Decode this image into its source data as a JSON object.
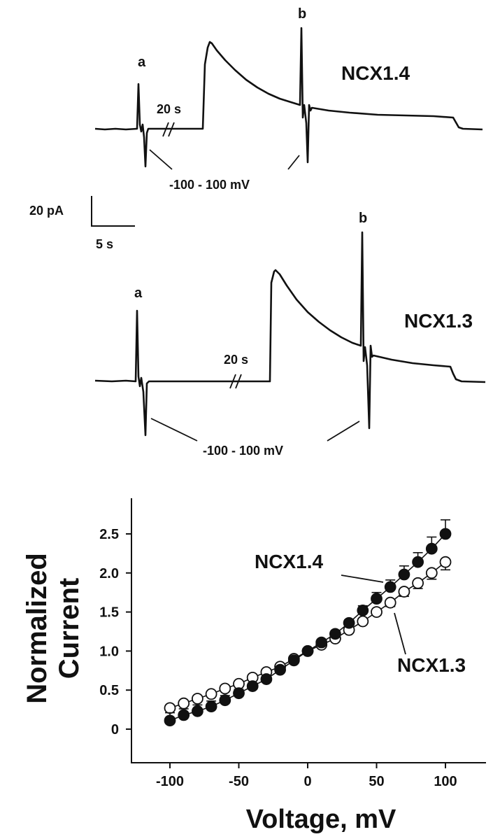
{
  "traces": {
    "top": {
      "label": "NCX1.4",
      "pulse_a_label": "a",
      "pulse_b_label": "b",
      "gap_label": "20 s",
      "ramp_label": "-100 - 100 mV"
    },
    "bottom": {
      "label": "NCX1.3",
      "pulse_a_label": "a",
      "pulse_b_label": "b",
      "gap_label": "20 s",
      "ramp_label": "-100 - 100 mV"
    },
    "scale_bar": {
      "current_label": "20 pA",
      "time_label": "5 s"
    }
  },
  "chart_data": {
    "type": "scatter",
    "title": "",
    "xlabel": "Voltage, mV",
    "ylabel": "Normalized Current",
    "xlim": [
      -120,
      125
    ],
    "ylim": [
      -0.12,
      2.85
    ],
    "xticks": [
      -100,
      -50,
      0,
      50,
      100
    ],
    "yticks": [
      0,
      0.5,
      1.0,
      1.5,
      2.0,
      2.5
    ],
    "xtick_labels": [
      "-100",
      "-50",
      "0",
      "50",
      "100"
    ],
    "ytick_labels": [
      "0",
      "0.5",
      "1.0",
      "1.5",
      "2.0",
      "2.5"
    ],
    "x": [
      -100,
      -90,
      -80,
      -70,
      -60,
      -50,
      -40,
      -30,
      -20,
      -10,
      0,
      10,
      20,
      30,
      40,
      50,
      60,
      70,
      80,
      90,
      100
    ],
    "series": [
      {
        "name": "NCX1.4",
        "marker": "filled-circle",
        "values": [
          0.11,
          0.18,
          0.23,
          0.29,
          0.37,
          0.46,
          0.55,
          0.64,
          0.76,
          0.88,
          1.0,
          1.11,
          1.22,
          1.36,
          1.52,
          1.67,
          1.82,
          1.98,
          2.14,
          2.31,
          2.5
        ],
        "errors": [
          0.1,
          0.08,
          0.08,
          0.07,
          0.06,
          0.05,
          0.04,
          0.03,
          0.02,
          0.01,
          0.0,
          0.02,
          0.03,
          0.04,
          0.06,
          0.08,
          0.09,
          0.11,
          0.12,
          0.15,
          0.18
        ]
      },
      {
        "name": "NCX1.3",
        "marker": "open-circle",
        "values": [
          0.27,
          0.33,
          0.39,
          0.45,
          0.52,
          0.58,
          0.66,
          0.73,
          0.8,
          0.9,
          1.0,
          1.08,
          1.16,
          1.27,
          1.38,
          1.5,
          1.62,
          1.76,
          1.87,
          2.0,
          2.14
        ],
        "errors": [
          0.02,
          0.02,
          0.02,
          0.02,
          0.02,
          0.02,
          0.02,
          0.01,
          0.01,
          0.01,
          0.0,
          0.01,
          0.01,
          0.02,
          0.03,
          0.04,
          0.05,
          0.06,
          0.07,
          0.08,
          0.1
        ]
      }
    ],
    "annotations": [
      "NCX1.4",
      "NCX1.3"
    ]
  }
}
